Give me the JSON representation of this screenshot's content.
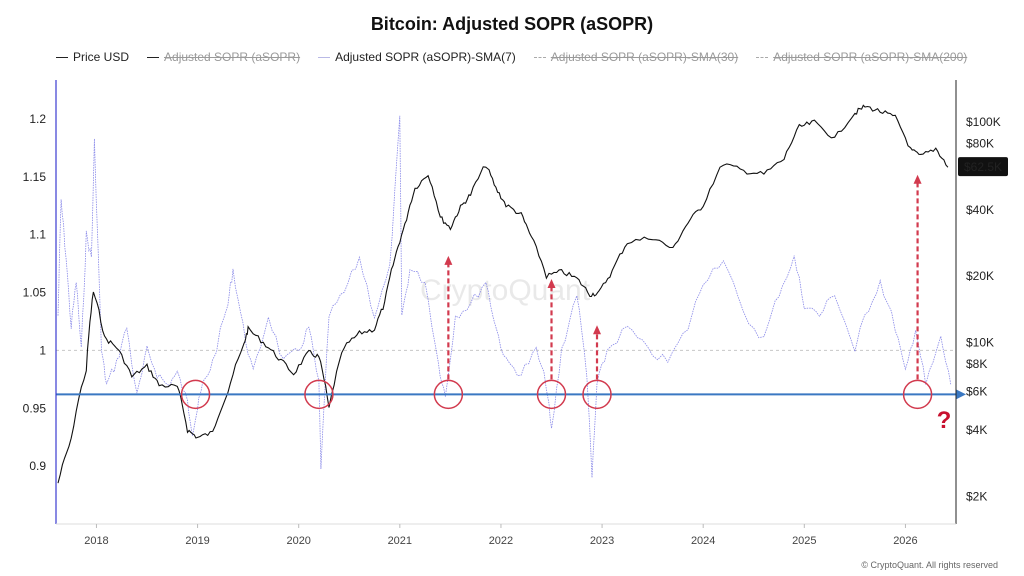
{
  "title": "Bitcoin: Adjusted SOPR (aSOPR)",
  "legend": [
    {
      "label": "Price USD",
      "active": true,
      "style": "solid-dark"
    },
    {
      "label": "Adjusted SOPR (aSOPR)",
      "active": false,
      "style": "solid-dark"
    },
    {
      "label": "Adjusted SOPR (aSOPR)-SMA(7)",
      "active": true,
      "style": "sma7"
    },
    {
      "label": "Adjusted SOPR (aSOPR)-SMA(30)",
      "active": false,
      "style": "dash"
    },
    {
      "label": "Adjusted SOPR (aSOPR)-SMA(200)",
      "active": false,
      "style": "dash"
    }
  ],
  "price_badge": "$62.5K",
  "watermark": "CryptoQuant",
  "credit": "© CryptoQuant. All rights reserved",
  "question_mark": "?",
  "colors": {
    "price": "#111111",
    "asopr": "#7b7be6",
    "support": "#3a78c2",
    "highlight": "#d23a4e",
    "baseline": "#c8c8c8",
    "badge_bg": "#111111",
    "badge_text": "#ffffff"
  },
  "chart_data": {
    "type": "line",
    "x_ticks": [
      "2018",
      "2019",
      "2020",
      "2021",
      "2022",
      "2023",
      "2024",
      "2025",
      "2026"
    ],
    "x_range": [
      2017.6,
      2026.5
    ],
    "left_axis": {
      "label": "",
      "ticks": [
        "1.2",
        "1.15",
        "1.1",
        "1.05",
        "1",
        "0.95",
        "0.9"
      ],
      "range": [
        0.85,
        1.225
      ]
    },
    "right_axis": {
      "label": "",
      "scale": "log",
      "ticks": [
        "$100K",
        "$80K",
        "$40K",
        "$20K",
        "$10K",
        "$8K",
        "$6K",
        "$4K",
        "$2K"
      ],
      "range": [
        1500,
        140000
      ]
    },
    "baseline_sopr": 1.0,
    "support_line_sopr": 0.962,
    "grid": false,
    "legend_placement": "top",
    "series": [
      {
        "name": "Price USD",
        "axis": "right",
        "x": [
          2017.62,
          2017.75,
          2017.9,
          2017.97,
          2018.08,
          2018.2,
          2018.35,
          2018.5,
          2018.62,
          2018.8,
          2018.9,
          2019.0,
          2019.15,
          2019.3,
          2019.45,
          2019.5,
          2019.65,
          2019.8,
          2019.95,
          2020.1,
          2020.2,
          2020.3,
          2020.45,
          2020.6,
          2020.75,
          2020.85,
          2020.95,
          2021.05,
          2021.15,
          2021.28,
          2021.4,
          2021.5,
          2021.6,
          2021.7,
          2021.85,
          2021.95,
          2022.05,
          2022.2,
          2022.3,
          2022.45,
          2022.6,
          2022.75,
          2022.88,
          2022.97,
          2023.1,
          2023.25,
          2023.5,
          2023.7,
          2023.85,
          2024.0,
          2024.2,
          2024.4,
          2024.6,
          2024.8,
          2024.95,
          2025.1,
          2025.3,
          2025.5,
          2025.6,
          2025.75,
          2025.9,
          2026.05,
          2026.15,
          2026.3,
          2026.42
        ],
        "values": [
          2300,
          3600,
          7500,
          17000,
          10500,
          9500,
          7000,
          7800,
          6400,
          6300,
          4000,
          3700,
          3900,
          6000,
          9500,
          11500,
          10000,
          8500,
          7200,
          9000,
          8600,
          5000,
          9500,
          11000,
          11500,
          15000,
          24000,
          34000,
          50000,
          58000,
          37000,
          33000,
          41000,
          47000,
          64000,
          50000,
          42000,
          38000,
          30000,
          20000,
          21000,
          19500,
          16500,
          16800,
          21000,
          28500,
          30000,
          26500,
          35000,
          42000,
          65000,
          60000,
          58000,
          68000,
          95000,
          100000,
          84000,
          110000,
          118000,
          112000,
          105000,
          75000,
          70000,
          76000,
          62500
        ]
      },
      {
        "name": "Adjusted SOPR (aSOPR)-SMA(7)",
        "axis": "left",
        "x": [
          2017.62,
          2017.65,
          2017.7,
          2017.75,
          2017.8,
          2017.85,
          2017.9,
          2017.95,
          2017.98,
          2018.05,
          2018.1,
          2018.2,
          2018.3,
          2018.4,
          2018.5,
          2018.6,
          2018.7,
          2018.8,
          2018.9,
          2018.95,
          2019.0,
          2019.05,
          2019.15,
          2019.3,
          2019.35,
          2019.45,
          2019.55,
          2019.7,
          2019.85,
          2020.0,
          2020.1,
          2020.2,
          2020.22,
          2020.3,
          2020.45,
          2020.6,
          2020.75,
          2020.9,
          2021.0,
          2021.02,
          2021.1,
          2021.25,
          2021.38,
          2021.45,
          2021.55,
          2021.7,
          2021.85,
          2021.95,
          2022.05,
          2022.2,
          2022.35,
          2022.45,
          2022.5,
          2022.6,
          2022.75,
          2022.85,
          2022.9,
          2022.95,
          2023.05,
          2023.25,
          2023.45,
          2023.65,
          2023.85,
          2024.0,
          2024.2,
          2024.4,
          2024.6,
          2024.75,
          2024.9,
          2025.0,
          2025.15,
          2025.3,
          2025.5,
          2025.6,
          2025.75,
          2025.9,
          2026.0,
          2026.1,
          2026.2,
          2026.35,
          2026.45
        ],
        "values": [
          1.03,
          1.13,
          1.08,
          1.02,
          1.06,
          1.0,
          1.1,
          1.08,
          1.18,
          1.0,
          0.97,
          0.99,
          1.02,
          0.96,
          1.0,
          0.98,
          0.97,
          0.98,
          0.955,
          0.93,
          0.95,
          0.97,
          0.99,
          1.04,
          1.07,
          1.02,
          0.98,
          1.03,
          0.99,
          1.0,
          1.02,
          0.97,
          0.9,
          1.03,
          1.05,
          1.08,
          1.03,
          1.07,
          1.2,
          1.03,
          1.07,
          1.06,
          0.99,
          0.96,
          1.03,
          1.04,
          1.06,
          1.02,
          0.99,
          0.98,
          1.0,
          0.97,
          0.93,
          1.0,
          1.05,
          0.98,
          0.89,
          0.97,
          1.0,
          1.02,
          1.0,
          0.99,
          1.02,
          1.06,
          1.08,
          1.03,
          1.01,
          1.05,
          1.08,
          1.04,
          1.03,
          1.05,
          1.0,
          1.03,
          1.06,
          1.02,
          0.98,
          1.02,
          0.97,
          1.01,
          0.97
        ]
      }
    ],
    "annotations": {
      "circles": [
        2018.98,
        2020.2,
        2021.48,
        2022.5,
        2022.95,
        2026.12
      ],
      "arrows": [
        {
          "x": 2021.48,
          "from_sopr": 0.975,
          "to_sopr": 1.08
        },
        {
          "x": 2022.5,
          "from_sopr": 0.975,
          "to_sopr": 1.06
        },
        {
          "x": 2022.95,
          "from_sopr": 0.975,
          "to_sopr": 1.02
        },
        {
          "x": 2026.12,
          "from_sopr": 0.975,
          "to_sopr": 1.15
        }
      ]
    }
  }
}
